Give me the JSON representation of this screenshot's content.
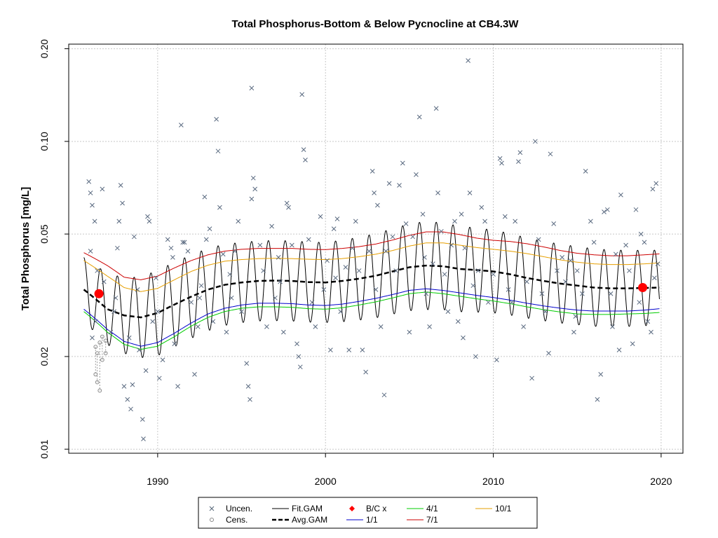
{
  "chart_data": {
    "type": "line",
    "title": "Total Phosphorus-Bottom & Below Pycnocline at CB4.3W",
    "xlabel": "",
    "ylabel": "Total Phosphorus [mg/L]",
    "y_scale": "log",
    "xlim": [
      1984.7,
      2021.3
    ],
    "ylim": [
      0.0097,
      0.207
    ],
    "x_ticks": [
      1990,
      2000,
      2010,
      2020
    ],
    "y_ticks": [
      0.01,
      0.02,
      0.05,
      0.1,
      0.2
    ],
    "x_tick_labels": [
      "1990",
      "2000",
      "2010",
      "2020"
    ],
    "y_tick_labels": [
      "0.01",
      "0.02",
      "0.05",
      "0.10",
      "0.20"
    ],
    "grid": true,
    "legend_position": "bottom",
    "legend": [
      {
        "label": "Uncen.",
        "kind": "cross",
        "color": "#556677"
      },
      {
        "label": "Cens.",
        "kind": "circle",
        "color": "#888888"
      },
      {
        "label": "Fit.GAM",
        "kind": "line",
        "color": "#000000"
      },
      {
        "label": "Avg.GAM",
        "kind": "dashed",
        "color": "#000000"
      },
      {
        "label": "B/C x",
        "kind": "diamond",
        "color": "#ff0000"
      },
      {
        "label": "1/1",
        "kind": "line",
        "color": "#0000cc"
      },
      {
        "label": "4/1",
        "kind": "line",
        "color": "#00cc00"
      },
      {
        "label": "7/1",
        "kind": "line",
        "color": "#cc0000"
      },
      {
        "label": "10/1",
        "kind": "line",
        "color": "#e69f00"
      }
    ],
    "series": [
      {
        "name": "Avg.GAM",
        "color": "#000000",
        "style": "dashed",
        "x": [
          1985.6,
          1987,
          1988,
          1989,
          1990,
          1991,
          1992,
          1993,
          1994,
          1995,
          1996,
          1997,
          1998,
          1999,
          2000,
          2001,
          2002,
          2003,
          2004,
          2005,
          2006,
          2007,
          2008,
          2009,
          2010,
          2011,
          2012,
          2013,
          2014,
          2015,
          2016,
          2017,
          2018,
          2019,
          2019.9
        ],
        "values": [
          0.033,
          0.0285,
          0.0272,
          0.0268,
          0.0277,
          0.0295,
          0.0313,
          0.033,
          0.0342,
          0.0348,
          0.0352,
          0.0353,
          0.0352,
          0.0349,
          0.0348,
          0.0352,
          0.0358,
          0.0366,
          0.0378,
          0.039,
          0.0395,
          0.0393,
          0.0385,
          0.0382,
          0.0378,
          0.037,
          0.036,
          0.0352,
          0.0345,
          0.034,
          0.0335,
          0.0333,
          0.0333,
          0.0334,
          0.0335
        ]
      },
      {
        "name": "1/1",
        "color": "#0000cc",
        "style": "solid",
        "x": [
          1985.6,
          1987,
          1988,
          1989,
          1990,
          1991,
          1992,
          1993,
          1994,
          1995,
          1996,
          1997,
          1998,
          1999,
          2000,
          2001,
          2002,
          2003,
          2004,
          2005,
          2006,
          2007,
          2008,
          2009,
          2010,
          2011,
          2012,
          2013,
          2014,
          2015,
          2016,
          2017,
          2018,
          2019,
          2019.9
        ],
        "values": [
          0.0285,
          0.0245,
          0.0224,
          0.0216,
          0.0222,
          0.0238,
          0.0257,
          0.0275,
          0.0287,
          0.0294,
          0.0298,
          0.0298,
          0.0297,
          0.0294,
          0.0293,
          0.0296,
          0.0302,
          0.0309,
          0.0318,
          0.0328,
          0.0332,
          0.0328,
          0.0322,
          0.0316,
          0.0311,
          0.0305,
          0.0298,
          0.0292,
          0.0287,
          0.0283,
          0.0281,
          0.0281,
          0.0281,
          0.0283,
          0.0286
        ]
      },
      {
        "name": "4/1",
        "color": "#00cc00",
        "style": "solid",
        "x": [
          1985.6,
          1987,
          1988,
          1989,
          1990,
          1991,
          1992,
          1993,
          1994,
          1995,
          1996,
          1997,
          1998,
          1999,
          2000,
          2001,
          2002,
          2003,
          2004,
          2005,
          2006,
          2007,
          2008,
          2009,
          2010,
          2011,
          2012,
          2013,
          2014,
          2015,
          2016,
          2017,
          2018,
          2019,
          2019.9
        ],
        "values": [
          0.028,
          0.024,
          0.0219,
          0.0211,
          0.0216,
          0.0232,
          0.0251,
          0.0268,
          0.028,
          0.0287,
          0.029,
          0.029,
          0.0289,
          0.0286,
          0.0285,
          0.0288,
          0.0294,
          0.0301,
          0.031,
          0.032,
          0.0324,
          0.032,
          0.0314,
          0.0308,
          0.0303,
          0.0297,
          0.029,
          0.0284,
          0.0279,
          0.0275,
          0.0274,
          0.0274,
          0.0275,
          0.0276,
          0.0278
        ]
      },
      {
        "name": "7/1",
        "color": "#cc0000",
        "style": "solid",
        "x": [
          1985.6,
          1987,
          1988,
          1989,
          1990,
          1991,
          1992,
          1993,
          1994,
          1995,
          1996,
          1997,
          1998,
          1999,
          2000,
          2001,
          2002,
          2003,
          2004,
          2005,
          2006,
          2007,
          2008,
          2009,
          2010,
          2011,
          2012,
          2013,
          2014,
          2015,
          2016,
          2017,
          2018,
          2019,
          2019.9
        ],
        "values": [
          0.0435,
          0.0395,
          0.0362,
          0.0355,
          0.0365,
          0.0388,
          0.041,
          0.0428,
          0.044,
          0.0446,
          0.0449,
          0.0449,
          0.0449,
          0.0446,
          0.0445,
          0.0449,
          0.0455,
          0.0464,
          0.0478,
          0.0495,
          0.0508,
          0.0508,
          0.0498,
          0.0485,
          0.0477,
          0.0473,
          0.0465,
          0.0454,
          0.0442,
          0.0433,
          0.0428,
          0.0425,
          0.0425,
          0.0428,
          0.0431
        ]
      },
      {
        "name": "10/1",
        "color": "#e69f00",
        "style": "solid",
        "x": [
          1985.6,
          1987,
          1988,
          1989,
          1990,
          1991,
          1992,
          1993,
          1994,
          1995,
          1996,
          1997,
          1998,
          1999,
          2000,
          2001,
          2002,
          2003,
          2004,
          2005,
          2006,
          2007,
          2008,
          2009,
          2010,
          2011,
          2012,
          2013,
          2014,
          2015,
          2016,
          2017,
          2018,
          2019,
          2019.9
        ],
        "values": [
          0.041,
          0.0365,
          0.0335,
          0.0325,
          0.0333,
          0.0355,
          0.0378,
          0.0396,
          0.0408,
          0.0413,
          0.0416,
          0.0417,
          0.0416,
          0.0414,
          0.0413,
          0.0416,
          0.0422,
          0.043,
          0.0442,
          0.0457,
          0.0468,
          0.0468,
          0.046,
          0.0452,
          0.0446,
          0.044,
          0.0432,
          0.0422,
          0.0412,
          0.0405,
          0.04,
          0.0398,
          0.0398,
          0.04,
          0.0403
        ]
      },
      {
        "name": "Fit.GAM",
        "color": "#000000",
        "style": "solid",
        "x_range": [
          1985.6,
          2019.9
        ],
        "seasonal_peak_frac": 0.6,
        "center_series": "Avg.GAM",
        "seasonal_amplitude_log": [
          {
            "x": 1985.6,
            "value": 0.24
          },
          {
            "x": 1990,
            "value": 0.32
          },
          {
            "x": 1995,
            "value": 0.3
          },
          {
            "x": 2000,
            "value": 0.3
          },
          {
            "x": 2006,
            "value": 0.33
          },
          {
            "x": 2012,
            "value": 0.3
          },
          {
            "x": 2019.9,
            "value": 0.28
          }
        ]
      }
    ],
    "bc_points": [
      {
        "x": 1986.5,
        "y": 0.032
      },
      {
        "x": 2018.9,
        "y": 0.0335
      }
    ],
    "censored_points": [
      {
        "x": 1986.3,
        "y": 0.0215,
        "lower": 0.0175
      },
      {
        "x": 1986.4,
        "y": 0.0205,
        "lower": 0.0165
      },
      {
        "x": 1986.55,
        "y": 0.0222,
        "lower": 0.0155
      },
      {
        "x": 1986.7,
        "y": 0.0232,
        "lower": 0.0195
      },
      {
        "x": 1986.9,
        "y": 0.0225,
        "lower": 0.0205
      }
    ],
    "uncensored_points": [
      [
        1985.9,
        0.074
      ],
      [
        1986.0,
        0.068
      ],
      [
        1986.1,
        0.062
      ],
      [
        1986.25,
        0.055
      ],
      [
        1986.7,
        0.07
      ],
      [
        1986.4,
        0.038
      ],
      [
        1986.1,
        0.023
      ],
      [
        1986.3,
        0.026
      ],
      [
        1986.8,
        0.035
      ],
      [
        1986.0,
        0.044
      ],
      [
        1987.2,
        0.024
      ],
      [
        1987.4,
        0.028
      ],
      [
        1987.6,
        0.045
      ],
      [
        1987.8,
        0.072
      ],
      [
        1987.9,
        0.063
      ],
      [
        1987.7,
        0.055
      ],
      [
        1988.0,
        0.016
      ],
      [
        1988.2,
        0.0145
      ],
      [
        1988.4,
        0.0135
      ],
      [
        1988.5,
        0.0162
      ],
      [
        1988.3,
        0.023
      ],
      [
        1988.6,
        0.049
      ],
      [
        1988.8,
        0.033
      ],
      [
        1988.9,
        0.021
      ],
      [
        1989.1,
        0.0125
      ],
      [
        1989.15,
        0.0108
      ],
      [
        1989.3,
        0.018
      ],
      [
        1989.4,
        0.057
      ],
      [
        1989.5,
        0.055
      ],
      [
        1989.7,
        0.026
      ],
      [
        1990.0,
        0.028
      ],
      [
        1990.1,
        0.017
      ],
      [
        1990.3,
        0.0195
      ],
      [
        1990.6,
        0.048
      ],
      [
        1990.8,
        0.045
      ],
      [
        1991.0,
        0.022
      ],
      [
        1991.2,
        0.016
      ],
      [
        1991.4,
        0.113
      ],
      [
        1991.5,
        0.047
      ],
      [
        1991.6,
        0.047
      ],
      [
        1991.8,
        0.044
      ],
      [
        1992.0,
        0.03
      ],
      [
        1992.2,
        0.0175
      ],
      [
        1992.4,
        0.025
      ],
      [
        1992.6,
        0.034
      ],
      [
        1992.8,
        0.066
      ],
      [
        1992.9,
        0.048
      ],
      [
        1993.1,
        0.052
      ],
      [
        1993.3,
        0.026
      ],
      [
        1993.5,
        0.118
      ],
      [
        1993.6,
        0.093
      ],
      [
        1993.7,
        0.061
      ],
      [
        1993.9,
        0.043
      ],
      [
        1994.1,
        0.024
      ],
      [
        1994.3,
        0.037
      ],
      [
        1994.6,
        0.044
      ],
      [
        1994.8,
        0.055
      ],
      [
        1995.0,
        0.028
      ],
      [
        1995.3,
        0.019
      ],
      [
        1995.4,
        0.016
      ],
      [
        1995.5,
        0.0145
      ],
      [
        1995.6,
        0.149
      ],
      [
        1995.7,
        0.076
      ],
      [
        1995.8,
        0.07
      ],
      [
        1995.6,
        0.065
      ],
      [
        1996.1,
        0.046
      ],
      [
        1996.3,
        0.038
      ],
      [
        1996.5,
        0.025
      ],
      [
        1996.8,
        0.053
      ],
      [
        1997.0,
        0.031
      ],
      [
        1997.3,
        0.035
      ],
      [
        1997.5,
        0.024
      ],
      [
        1997.7,
        0.063
      ],
      [
        1997.8,
        0.061
      ],
      [
        1998.0,
        0.046
      ],
      [
        1998.3,
        0.022
      ],
      [
        1998.4,
        0.02
      ],
      [
        1998.5,
        0.0185
      ],
      [
        1998.6,
        0.142
      ],
      [
        1998.7,
        0.094
      ],
      [
        1998.8,
        0.087
      ],
      [
        1999.0,
        0.048
      ],
      [
        1999.2,
        0.03
      ],
      [
        1999.4,
        0.025
      ],
      [
        1999.7,
        0.057
      ],
      [
        1999.9,
        0.033
      ],
      [
        2000.1,
        0.041
      ],
      [
        2000.3,
        0.021
      ],
      [
        2000.5,
        0.052
      ],
      [
        2000.7,
        0.056
      ],
      [
        2000.9,
        0.028
      ],
      [
        2001.2,
        0.039
      ],
      [
        2001.4,
        0.021
      ],
      [
        2001.6,
        0.045
      ],
      [
        2001.8,
        0.055
      ],
      [
        2002.0,
        0.038
      ],
      [
        2002.2,
        0.021
      ],
      [
        2002.4,
        0.0178
      ],
      [
        2002.6,
        0.044
      ],
      [
        2002.8,
        0.08
      ],
      [
        2002.9,
        0.068
      ],
      [
        2003.1,
        0.062
      ],
      [
        2003.3,
        0.025
      ],
      [
        2003.5,
        0.015
      ],
      [
        2003.6,
        0.044
      ],
      [
        2003.8,
        0.073
      ],
      [
        2004.0,
        0.049
      ],
      [
        2004.2,
        0.038
      ],
      [
        2004.4,
        0.072
      ],
      [
        2004.6,
        0.085
      ],
      [
        2004.8,
        0.054
      ],
      [
        2005.0,
        0.024
      ],
      [
        2005.2,
        0.049
      ],
      [
        2005.4,
        0.078
      ],
      [
        2005.6,
        0.12
      ],
      [
        2005.8,
        0.058
      ],
      [
        2006.0,
        0.032
      ],
      [
        2006.2,
        0.025
      ],
      [
        2006.4,
        0.04
      ],
      [
        2006.6,
        0.128
      ],
      [
        2006.7,
        0.068
      ],
      [
        2006.9,
        0.051
      ],
      [
        2007.1,
        0.037
      ],
      [
        2007.3,
        0.028
      ],
      [
        2007.5,
        0.046
      ],
      [
        2007.7,
        0.055
      ],
      [
        2007.9,
        0.026
      ],
      [
        2008.1,
        0.058
      ],
      [
        2008.3,
        0.045
      ],
      [
        2008.5,
        0.183
      ],
      [
        2008.6,
        0.068
      ],
      [
        2008.8,
        0.034
      ],
      [
        2008.95,
        0.02
      ],
      [
        2009.1,
        0.038
      ],
      [
        2009.3,
        0.061
      ],
      [
        2009.5,
        0.055
      ],
      [
        2009.7,
        0.03
      ],
      [
        2010.0,
        0.037
      ],
      [
        2010.2,
        0.0195
      ],
      [
        2010.4,
        0.088
      ],
      [
        2010.5,
        0.085
      ],
      [
        2010.7,
        0.057
      ],
      [
        2010.9,
        0.033
      ],
      [
        2011.1,
        0.03
      ],
      [
        2011.3,
        0.055
      ],
      [
        2011.5,
        0.086
      ],
      [
        2011.6,
        0.092
      ],
      [
        2011.8,
        0.025
      ],
      [
        2012.0,
        0.035
      ],
      [
        2012.3,
        0.017
      ],
      [
        2012.5,
        0.1
      ],
      [
        2012.7,
        0.048
      ],
      [
        2012.9,
        0.032
      ],
      [
        2013.1,
        0.028
      ],
      [
        2013.3,
        0.0205
      ],
      [
        2013.4,
        0.091
      ],
      [
        2013.6,
        0.054
      ],
      [
        2013.8,
        0.038
      ],
      [
        2014.1,
        0.042
      ],
      [
        2014.3,
        0.035
      ],
      [
        2014.6,
        0.041
      ],
      [
        2014.8,
        0.024
      ],
      [
        2015.0,
        0.038
      ],
      [
        2015.3,
        0.032
      ],
      [
        2015.5,
        0.08
      ],
      [
        2015.8,
        0.055
      ],
      [
        2016.0,
        0.047
      ],
      [
        2016.2,
        0.0145
      ],
      [
        2016.4,
        0.0175
      ],
      [
        2016.6,
        0.059
      ],
      [
        2016.8,
        0.06
      ],
      [
        2017.0,
        0.032
      ],
      [
        2017.3,
        0.043
      ],
      [
        2017.5,
        0.021
      ],
      [
        2017.6,
        0.067
      ],
      [
        2017.9,
        0.046
      ],
      [
        2018.1,
        0.038
      ],
      [
        2018.3,
        0.022
      ],
      [
        2018.5,
        0.06
      ],
      [
        2018.7,
        0.03
      ],
      [
        2018.8,
        0.05
      ],
      [
        2019.0,
        0.047
      ],
      [
        2019.2,
        0.026
      ],
      [
        2019.4,
        0.024
      ],
      [
        2019.5,
        0.07
      ],
      [
        2019.7,
        0.073
      ],
      [
        2019.8,
        0.04
      ],
      [
        2019.6,
        0.036
      ],
      [
        2017.1,
        0.025
      ],
      [
        2014.9,
        0.027
      ],
      [
        2008.2,
        0.023
      ],
      [
        2005.9,
        0.042
      ],
      [
        2003.0,
        0.033
      ],
      [
        2000.6,
        0.036
      ],
      [
        1997.2,
        0.042
      ],
      [
        1994.4,
        0.031
      ],
      [
        1992.5,
        0.031
      ],
      [
        1990.9,
        0.042
      ],
      [
        1989.9,
        0.036
      ],
      [
        1987.5,
        0.031
      ]
    ]
  }
}
